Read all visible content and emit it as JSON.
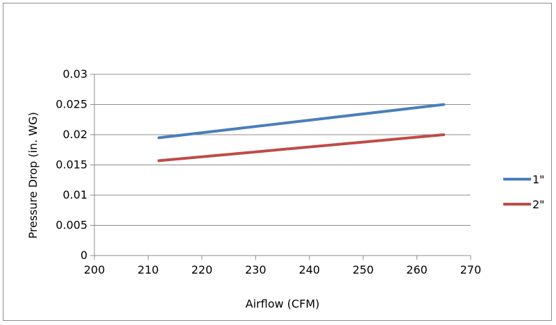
{
  "chart_data": {
    "type": "line",
    "title": "",
    "xlabel": "Airflow (CFM)",
    "ylabel": "Pressure Drop (in. WG)",
    "xlim": [
      200,
      270
    ],
    "ylim": [
      0,
      0.03
    ],
    "x_ticks": [
      "200",
      "210",
      "220",
      "230",
      "240",
      "250",
      "260",
      "270"
    ],
    "y_ticks": [
      "0",
      "0.005",
      "0.01",
      "0.015",
      "0.02",
      "0.025",
      "0.03"
    ],
    "grid": "horizontal",
    "legend_position": "right",
    "series": [
      {
        "name": "1\"",
        "color": "#4a7ebb",
        "points": [
          [
            212,
            0.0195
          ],
          [
            265,
            0.025
          ]
        ]
      },
      {
        "name": "2\"",
        "color": "#be4b48",
        "points": [
          [
            212,
            0.0157
          ],
          [
            265,
            0.02
          ]
        ]
      }
    ]
  }
}
